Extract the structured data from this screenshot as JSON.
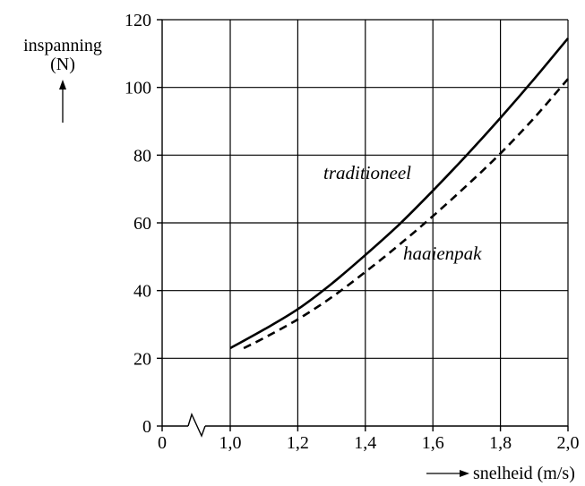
{
  "chart_data": {
    "type": "line",
    "title": "",
    "xlabel": "snelheid (m/s)",
    "ylabel_line1": "inspanning",
    "ylabel_line2": "(N)",
    "xlim": [
      1.0,
      2.0
    ],
    "ylim": [
      0,
      120
    ],
    "x_axis_break": true,
    "x_ticks": [
      {
        "value": 0,
        "label": "0"
      },
      {
        "value": 1.0,
        "label": "1,0"
      },
      {
        "value": 1.2,
        "label": "1,2"
      },
      {
        "value": 1.4,
        "label": "1,4"
      },
      {
        "value": 1.6,
        "label": "1,6"
      },
      {
        "value": 1.8,
        "label": "1,8"
      },
      {
        "value": 2.0,
        "label": "2,0"
      }
    ],
    "y_ticks": [
      {
        "value": 0,
        "label": "0"
      },
      {
        "value": 20,
        "label": "20"
      },
      {
        "value": 40,
        "label": "40"
      },
      {
        "value": 60,
        "label": "60"
      },
      {
        "value": 80,
        "label": "80"
      },
      {
        "value": 100,
        "label": "100"
      },
      {
        "value": 120,
        "label": "120"
      }
    ],
    "grid": true,
    "series": [
      {
        "name": "traditioneel",
        "style": "solid",
        "color": "#000000",
        "x": [
          1.0,
          1.1,
          1.2,
          1.3,
          1.4,
          1.5,
          1.6,
          1.7,
          1.8,
          1.9,
          2.0
        ],
        "y": [
          23,
          28.5,
          34.5,
          42,
          50.5,
          59.5,
          69.5,
          80,
          91,
          102.5,
          114.5
        ]
      },
      {
        "name": "haaienpak",
        "style": "dashed",
        "color": "#000000",
        "x": [
          1.04,
          1.1,
          1.2,
          1.3,
          1.4,
          1.5,
          1.6,
          1.7,
          1.8,
          1.9,
          2.0
        ],
        "y": [
          23,
          26,
          31.5,
          38,
          45.5,
          53.5,
          62,
          71,
          80.5,
          91,
          102.5
        ]
      }
    ]
  }
}
